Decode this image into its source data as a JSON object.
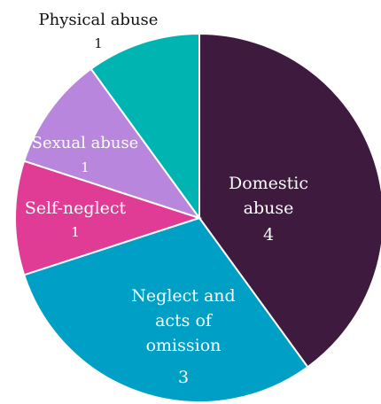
{
  "chart_data": {
    "type": "pie",
    "title": "",
    "start_angle_deg": 0,
    "direction": "clockwise",
    "slices": [
      {
        "label_lines": [
          "Domestic",
          "abuse"
        ],
        "value": 4,
        "color": "#3d1a3e"
      },
      {
        "label_lines": [
          "Neglect and",
          "acts of",
          "omission"
        ],
        "value": 3,
        "color": "#00a0c6"
      },
      {
        "label_lines": [
          "Self-neglect"
        ],
        "value": 1,
        "color": "#e03c96"
      },
      {
        "label_lines": [
          "Sexual abuse"
        ],
        "value": 1,
        "color": "#b886dc"
      },
      {
        "label_lines": [
          "Physical abuse"
        ],
        "value": 1,
        "color": "#00b5b1"
      }
    ]
  }
}
